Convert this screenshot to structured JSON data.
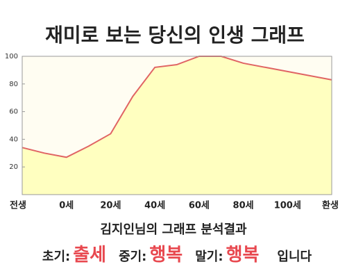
{
  "chart_data": {
    "type": "area",
    "title": "재미로 보는 당신의 인생 그래프",
    "categories": [
      "전생",
      null,
      "0세",
      null,
      "20세",
      null,
      "40세",
      null,
      "60세",
      null,
      "80세",
      null,
      "100세",
      null,
      "환생"
    ],
    "values": [
      34,
      30,
      27,
      35,
      44,
      71,
      92,
      94,
      100,
      100,
      95,
      92,
      89,
      86,
      83
    ],
    "color": "#e06464",
    "fill": "#ffffc0",
    "background": "#fffdf2",
    "ylim": [
      0,
      100
    ],
    "yticks": [
      20,
      40,
      60,
      80,
      100
    ],
    "grid": false
  },
  "summary": "김지인님의 그래프 분석결과",
  "analysis": [
    {
      "label": "초기:",
      "value": "출세"
    },
    {
      "label": "중기:",
      "value": "행복"
    },
    {
      "label": "말기:",
      "value": "행복"
    }
  ],
  "suffix": "입니다"
}
